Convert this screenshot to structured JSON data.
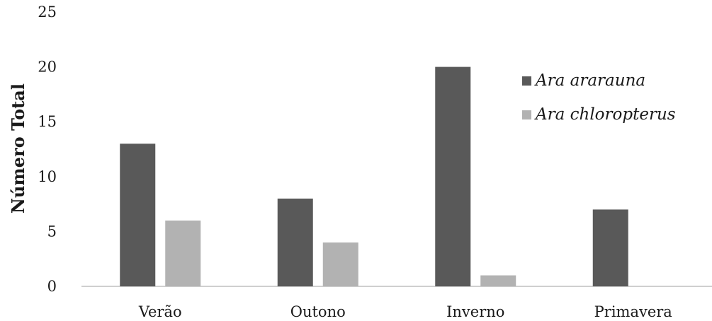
{
  "chart_data": {
    "type": "bar",
    "categories": [
      "Verão",
      "Outono",
      "Inverno",
      "Primavera"
    ],
    "series": [
      {
        "name": "Ara ararauna",
        "values": [
          13,
          8,
          20,
          7
        ],
        "color": "#595959"
      },
      {
        "name": "Ara chloropterus",
        "values": [
          6,
          4,
          1,
          0
        ],
        "color": "#b2b2b2"
      }
    ],
    "xlabel": "",
    "ylabel": "Número Total",
    "ylim": [
      0,
      25
    ],
    "yticks": [
      0,
      5,
      10,
      15,
      20,
      25
    ],
    "grid": false,
    "legend_position": "right"
  }
}
